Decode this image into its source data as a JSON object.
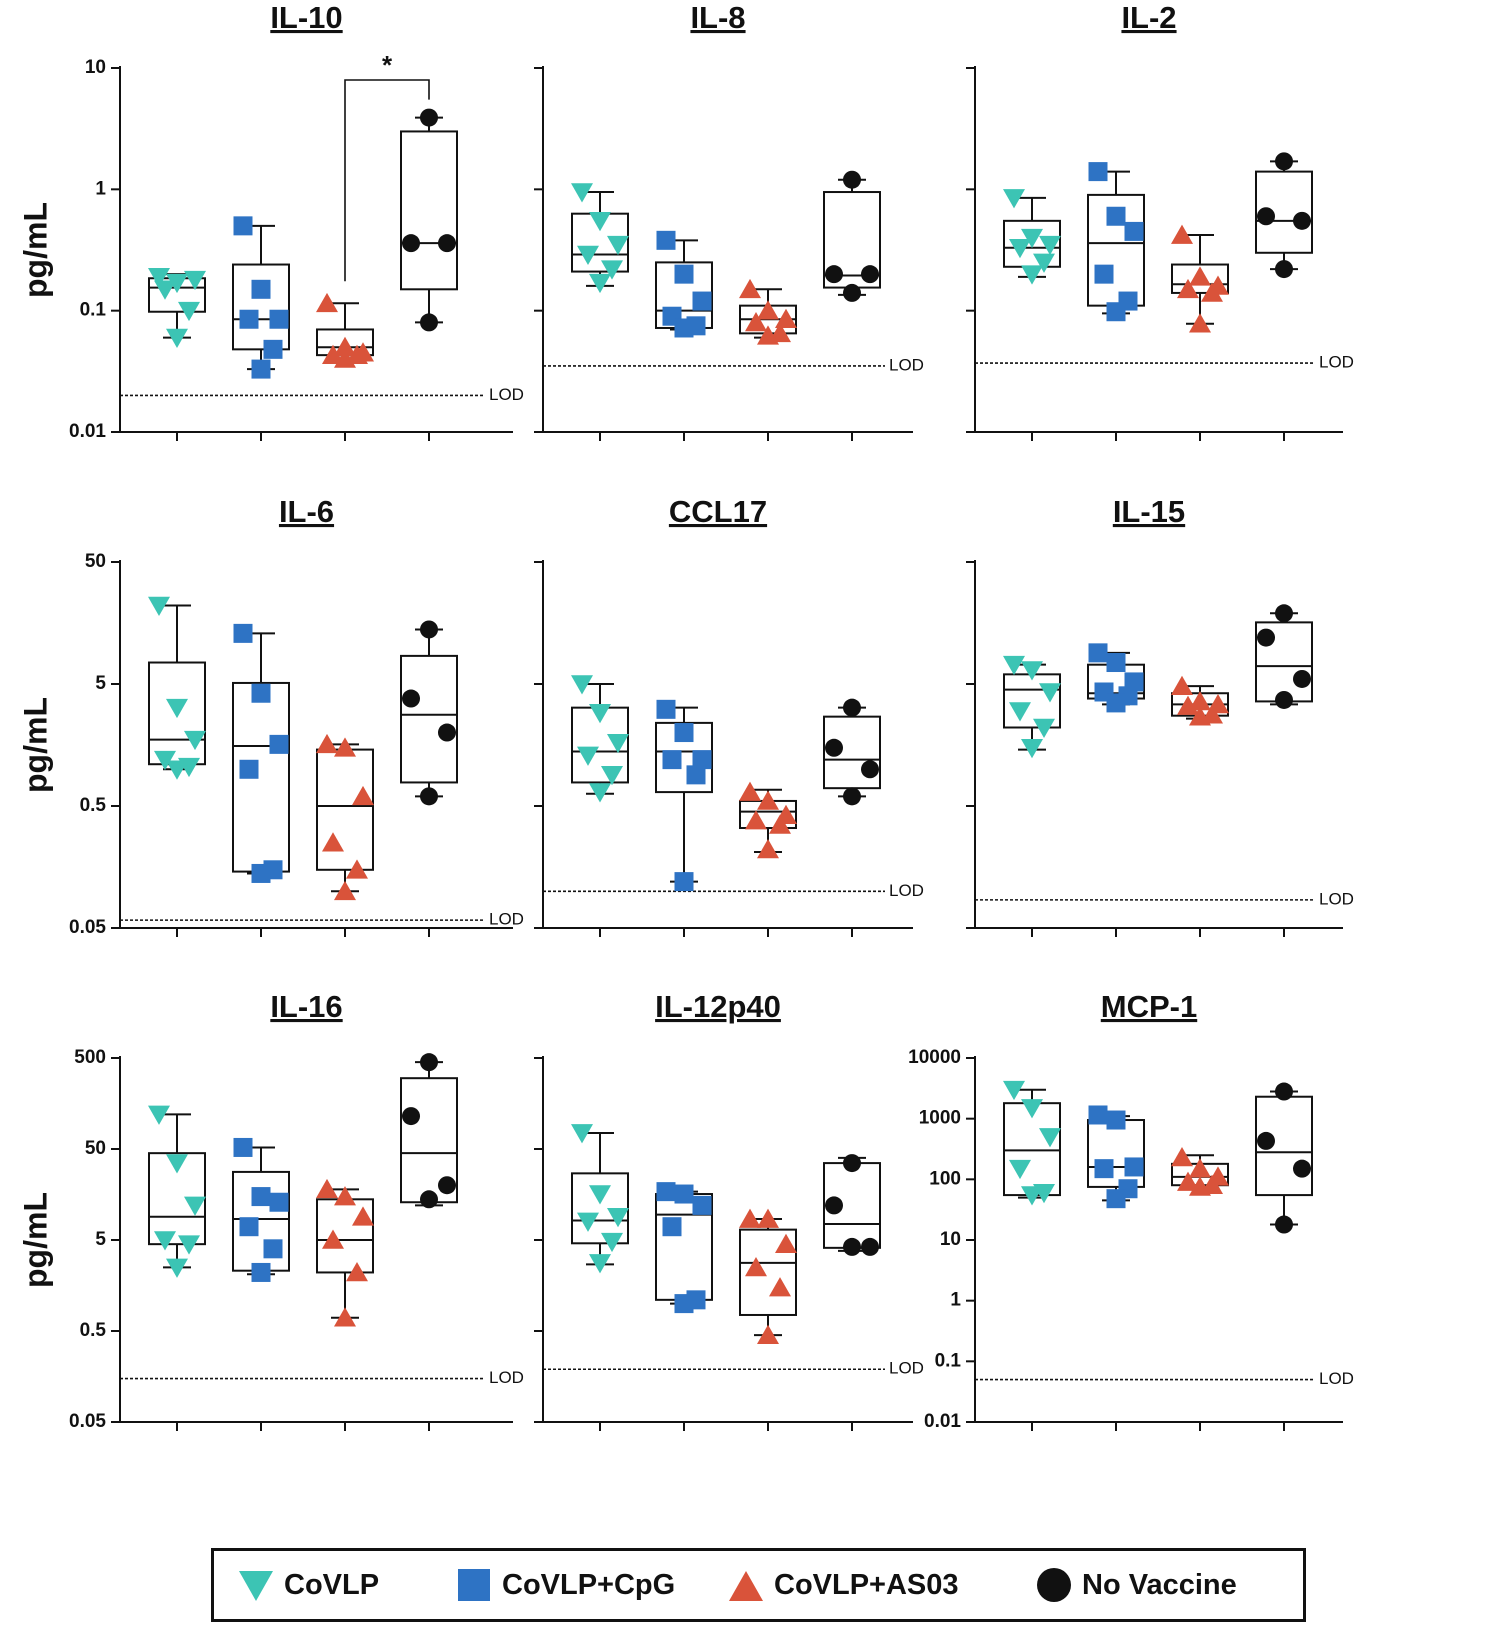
{
  "colors": {
    "CoVLP": "#3cc4b4",
    "CoVLP+CpG": "#2e73c4",
    "CoVLP+AS03": "#d9533a",
    "No Vaccine": "#111111"
  },
  "legend": {
    "items": [
      {
        "label": "CoVLP",
        "icon": "down-triangle-icon"
      },
      {
        "label": "CoVLP+CpG",
        "icon": "square-icon"
      },
      {
        "label": "CoVLP+AS03",
        "icon": "up-triangle-icon"
      },
      {
        "label": "No Vaccine",
        "icon": "circle-icon"
      }
    ]
  },
  "chart_data": [
    {
      "type": "box",
      "title": "IL-10",
      "ylabel": "pg/mL",
      "yscale": "log",
      "ylim": [
        0.01,
        10
      ],
      "yticks": [
        "10",
        "1",
        "0.1",
        "0.01"
      ],
      "ytick_values": [
        10,
        1,
        0.1,
        0.01
      ],
      "lod": 0.02,
      "lod_label": "LOD",
      "significance": {
        "from": "CoVLP+AS03",
        "to": "No Vaccine",
        "label": "*"
      },
      "groups": [
        {
          "name": "CoVLP",
          "min": 0.06,
          "q1": 0.098,
          "median": 0.155,
          "q3": 0.185,
          "max": 0.2,
          "points": [
            0.19,
            0.17,
            0.18,
            0.15,
            0.1,
            0.06
          ]
        },
        {
          "name": "CoVLP+CpG",
          "min": 0.033,
          "q1": 0.048,
          "median": 0.085,
          "q3": 0.24,
          "max": 0.5,
          "points": [
            0.5,
            0.15,
            0.085,
            0.085,
            0.048,
            0.033
          ]
        },
        {
          "name": "CoVLP+AS03",
          "min": 0.04,
          "q1": 0.043,
          "median": 0.05,
          "q3": 0.07,
          "max": 0.115,
          "points": [
            0.115,
            0.05,
            0.045,
            0.043,
            0.043,
            0.04
          ]
        },
        {
          "name": "No Vaccine",
          "min": 0.08,
          "q1": 0.15,
          "median": 0.36,
          "q3": 3.0,
          "max": 3.9,
          "points": [
            3.9,
            0.36,
            0.36,
            0.08
          ]
        }
      ]
    },
    {
      "type": "box",
      "title": "IL-8",
      "ylabel": "",
      "yscale": "log",
      "ylim": [
        0.01,
        10
      ],
      "yticks": [],
      "ytick_values": [
        10,
        1,
        0.1,
        0.01
      ],
      "lod": 0.035,
      "lod_label": "LOD",
      "groups": [
        {
          "name": "CoVLP",
          "min": 0.16,
          "q1": 0.21,
          "median": 0.29,
          "q3": 0.63,
          "max": 0.95,
          "points": [
            0.95,
            0.55,
            0.35,
            0.29,
            0.22,
            0.17
          ]
        },
        {
          "name": "CoVLP+CpG",
          "min": 0.07,
          "q1": 0.072,
          "median": 0.1,
          "q3": 0.25,
          "max": 0.38,
          "points": [
            0.38,
            0.2,
            0.12,
            0.09,
            0.075,
            0.072
          ]
        },
        {
          "name": "CoVLP+AS03",
          "min": 0.06,
          "q1": 0.065,
          "median": 0.085,
          "q3": 0.11,
          "max": 0.15,
          "points": [
            0.15,
            0.1,
            0.085,
            0.08,
            0.065,
            0.062
          ]
        },
        {
          "name": "No Vaccine",
          "min": 0.135,
          "q1": 0.155,
          "median": 0.195,
          "q3": 0.95,
          "max": 1.2,
          "points": [
            1.2,
            0.2,
            0.2,
            0.14
          ]
        }
      ]
    },
    {
      "type": "box",
      "title": "IL-2",
      "ylabel": "",
      "yscale": "log",
      "ylim": [
        0.01,
        10
      ],
      "yticks": [],
      "ytick_values": [
        10,
        1,
        0.1,
        0.01
      ],
      "lod": 0.037,
      "lod_label": "LOD",
      "groups": [
        {
          "name": "CoVLP",
          "min": 0.19,
          "q1": 0.23,
          "median": 0.33,
          "q3": 0.55,
          "max": 0.85,
          "points": [
            0.85,
            0.4,
            0.35,
            0.33,
            0.25,
            0.2
          ]
        },
        {
          "name": "CoVLP+CpG",
          "min": 0.095,
          "q1": 0.11,
          "median": 0.36,
          "q3": 0.9,
          "max": 1.4,
          "points": [
            1.4,
            0.6,
            0.45,
            0.2,
            0.12,
            0.098
          ]
        },
        {
          "name": "CoVLP+AS03",
          "min": 0.078,
          "q1": 0.14,
          "median": 0.165,
          "q3": 0.24,
          "max": 0.42,
          "points": [
            0.42,
            0.19,
            0.16,
            0.15,
            0.14,
            0.078
          ]
        },
        {
          "name": "No Vaccine",
          "min": 0.22,
          "q1": 0.3,
          "median": 0.55,
          "q3": 1.4,
          "max": 1.7,
          "points": [
            1.7,
            0.6,
            0.55,
            0.22
          ]
        }
      ]
    },
    {
      "type": "box",
      "title": "IL-6",
      "ylabel": "pg/mL",
      "yscale": "log",
      "ylim": [
        0.05,
        50
      ],
      "yticks": [
        "50",
        "5",
        "0.5",
        "0.05"
      ],
      "ytick_values": [
        50,
        5,
        0.5,
        0.05
      ],
      "lod": 0.058,
      "lod_label": "LOD",
      "groups": [
        {
          "name": "CoVLP",
          "min": 1.0,
          "q1": 1.1,
          "median": 1.75,
          "q3": 7.5,
          "max": 22,
          "points": [
            22,
            3.2,
            1.75,
            1.2,
            1.05,
            1.0
          ]
        },
        {
          "name": "CoVLP+CpG",
          "min": 0.14,
          "q1": 0.145,
          "median": 1.55,
          "q3": 5.1,
          "max": 13,
          "points": [
            13,
            4.2,
            1.6,
            1.0,
            0.15,
            0.14
          ]
        },
        {
          "name": "CoVLP+AS03",
          "min": 0.1,
          "q1": 0.15,
          "median": 0.5,
          "q3": 1.45,
          "max": 1.6,
          "points": [
            1.6,
            1.5,
            0.6,
            0.25,
            0.15,
            0.1
          ]
        },
        {
          "name": "No Vaccine",
          "min": 0.6,
          "q1": 0.78,
          "median": 2.8,
          "q3": 8.5,
          "max": 14,
          "points": [
            14,
            3.8,
            2.0,
            0.6
          ]
        }
      ]
    },
    {
      "type": "box",
      "title": "CCL17",
      "ylabel": "",
      "yscale": "log",
      "ylim": [
        0.05,
        50
      ],
      "yticks": [],
      "ytick_values": [
        50,
        5,
        0.5,
        0.05
      ],
      "lod": 0.1,
      "lod_label": "LOD",
      "groups": [
        {
          "name": "CoVLP",
          "min": 0.63,
          "q1": 0.78,
          "median": 1.4,
          "q3": 3.2,
          "max": 5,
          "points": [
            5,
            2.9,
            1.65,
            1.3,
            0.9,
            0.65
          ]
        },
        {
          "name": "CoVLP+CpG",
          "min": 0.12,
          "q1": 0.65,
          "median": 1.4,
          "q3": 2.4,
          "max": 3.2,
          "points": [
            3.1,
            2.0,
            1.2,
            1.2,
            0.9,
            0.12
          ]
        },
        {
          "name": "CoVLP+AS03",
          "min": 0.21,
          "q1": 0.33,
          "median": 0.45,
          "q3": 0.55,
          "max": 0.68,
          "points": [
            0.65,
            0.55,
            0.42,
            0.38,
            0.35,
            0.22
          ]
        },
        {
          "name": "No Vaccine",
          "min": 0.6,
          "q1": 0.7,
          "median": 1.2,
          "q3": 2.7,
          "max": 3.2,
          "points": [
            3.2,
            1.5,
            1.0,
            0.6
          ]
        }
      ]
    },
    {
      "type": "box",
      "title": "IL-15",
      "ylabel": "",
      "yscale": "log",
      "ylim": [
        0.05,
        50
      ],
      "yticks": [],
      "ytick_values": [
        50,
        5,
        0.5,
        0.05
      ],
      "lod": 0.085,
      "lod_label": "LOD",
      "groups": [
        {
          "name": "CoVLP",
          "min": 1.45,
          "q1": 2.2,
          "median": 4.5,
          "q3": 6.0,
          "max": 7.2,
          "points": [
            7.2,
            6.5,
            4.3,
            3.0,
            2.2,
            1.5
          ]
        },
        {
          "name": "CoVLP+CpG",
          "min": 3.4,
          "q1": 3.8,
          "median": 4.2,
          "q3": 7.2,
          "max": 9,
          "points": [
            9,
            7.5,
            5.2,
            4.3,
            4.0,
            3.5
          ]
        },
        {
          "name": "CoVLP+AS03",
          "min": 2.6,
          "q1": 2.75,
          "median": 3.4,
          "q3": 4.2,
          "max": 4.8,
          "points": [
            4.8,
            3.6,
            3.4,
            3.3,
            2.8,
            2.7
          ]
        },
        {
          "name": "No Vaccine",
          "min": 3.4,
          "q1": 3.6,
          "median": 7.0,
          "q3": 16,
          "max": 19,
          "points": [
            19,
            12,
            5.5,
            3.7
          ]
        }
      ]
    },
    {
      "type": "box",
      "title": "IL-16",
      "ylabel": "pg/mL",
      "yscale": "log",
      "ylim": [
        0.05,
        500
      ],
      "yticks": [
        "500",
        "50",
        "5",
        "0.5",
        "0.05"
      ],
      "ytick_values": [
        500,
        50,
        5,
        0.5,
        0.05
      ],
      "lod": 0.15,
      "lod_label": "LOD",
      "groups": [
        {
          "name": "CoVLP",
          "min": 2.5,
          "q1": 4.5,
          "median": 9,
          "q3": 45,
          "max": 120,
          "points": [
            120,
            35,
            12,
            5,
            4.5,
            2.5
          ]
        },
        {
          "name": "CoVLP+CpG",
          "min": 2.1,
          "q1": 2.3,
          "median": 8.5,
          "q3": 28,
          "max": 52,
          "points": [
            52,
            15,
            13,
            7,
            4,
            2.2
          ]
        },
        {
          "name": "CoVLP+AS03",
          "min": 0.7,
          "q1": 2.2,
          "median": 5,
          "q3": 14,
          "max": 18,
          "points": [
            18,
            15,
            9,
            5,
            2.2,
            0.7
          ]
        },
        {
          "name": "No Vaccine",
          "min": 12,
          "q1": 13,
          "median": 45,
          "q3": 300,
          "max": 450,
          "points": [
            450,
            115,
            20,
            14
          ]
        }
      ]
    },
    {
      "type": "box",
      "title": "IL-12p40",
      "ylabel": "",
      "yscale": "log",
      "ylim": [
        0.05,
        500
      ],
      "yticks": [],
      "ytick_values": [
        500,
        50,
        5,
        0.5,
        0.05
      ],
      "lod": 0.19,
      "lod_label": "LOD",
      "groups": [
        {
          "name": "CoVLP",
          "min": 2.7,
          "q1": 4.6,
          "median": 8.2,
          "q3": 27,
          "max": 75,
          "points": [
            75,
            16,
            9,
            8,
            4.8,
            2.8
          ]
        },
        {
          "name": "CoVLP+CpG",
          "min": 1.0,
          "q1": 1.1,
          "median": 9.5,
          "q3": 16,
          "max": 17,
          "points": [
            17,
            16,
            12,
            7,
            1.1,
            1.0
          ]
        },
        {
          "name": "CoVLP+AS03",
          "min": 0.45,
          "q1": 0.75,
          "median": 2.8,
          "q3": 6.5,
          "max": 8.5,
          "points": [
            8.5,
            8.5,
            4.5,
            2.5,
            1.5,
            0.45
          ]
        },
        {
          "name": "No Vaccine",
          "min": 3.8,
          "q1": 4.1,
          "median": 7.5,
          "q3": 35,
          "max": 40,
          "points": [
            35,
            12,
            4.2,
            4.2
          ]
        }
      ]
    },
    {
      "type": "box",
      "title": "MCP-1",
      "ylabel": "",
      "yscale": "log",
      "ylim": [
        0.01,
        10000
      ],
      "yticks": [
        "10000",
        "1000",
        "100",
        "10",
        "1",
        "0.1",
        "0.01"
      ],
      "ytick_values": [
        10000,
        1000,
        100,
        10,
        1,
        0.1,
        0.01
      ],
      "lod": 0.05,
      "lod_label": "LOD",
      "groups": [
        {
          "name": "CoVLP",
          "min": 50,
          "q1": 55,
          "median": 300,
          "q3": 1800,
          "max": 3000,
          "points": [
            3000,
            1500,
            500,
            150,
            60,
            55
          ]
        },
        {
          "name": "CoVLP+CpG",
          "min": 45,
          "q1": 75,
          "median": 160,
          "q3": 950,
          "max": 1100,
          "points": [
            1150,
            950,
            160,
            150,
            70,
            48
          ]
        },
        {
          "name": "CoVLP+AS03",
          "min": 70,
          "q1": 80,
          "median": 110,
          "q3": 180,
          "max": 250,
          "points": [
            230,
            150,
            110,
            90,
            80,
            75
          ]
        },
        {
          "name": "No Vaccine",
          "min": 18,
          "q1": 55,
          "median": 280,
          "q3": 2300,
          "max": 2800,
          "points": [
            2800,
            430,
            150,
            18
          ]
        }
      ]
    }
  ]
}
